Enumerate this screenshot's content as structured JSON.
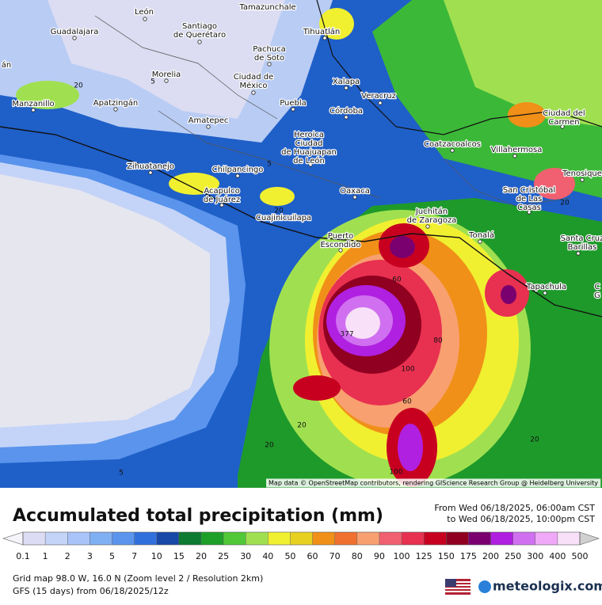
{
  "map": {
    "cities": [
      {
        "lines": [
          "León"
        ]
      },
      {
        "lines": [
          "Tamazunchale"
        ]
      },
      {
        "lines": [
          "Guadalajara"
        ]
      },
      {
        "lines": [
          "Santiago",
          "de Querétaro"
        ]
      },
      {
        "lines": [
          "Tihuatlán"
        ]
      },
      {
        "lines": [
          "Pachuca",
          "de Soto"
        ]
      },
      {
        "lines": [
          "Morelia"
        ]
      },
      {
        "lines": [
          "Ciudad de",
          "México"
        ]
      },
      {
        "lines": [
          "Manzanillo"
        ]
      },
      {
        "lines": [
          "Apatzingán"
        ]
      },
      {
        "lines": [
          "Puebla"
        ]
      },
      {
        "lines": [
          "Xalapa"
        ]
      },
      {
        "lines": [
          "Veracruz"
        ]
      },
      {
        "lines": [
          "Córdoba"
        ]
      },
      {
        "lines": [
          "Amatepec"
        ]
      },
      {
        "lines": [
          "Heroica",
          "Ciudad",
          "de Huajuapan",
          "de León"
        ]
      },
      {
        "lines": [
          "Ciudad del",
          "Carmen"
        ]
      },
      {
        "lines": [
          "Coatzacoalcos"
        ]
      },
      {
        "lines": [
          "Villahermosa"
        ]
      },
      {
        "lines": [
          "Zihuatanejo"
        ]
      },
      {
        "lines": [
          "Chilpancingo"
        ]
      },
      {
        "lines": [
          "Acapulco",
          "de Juárez"
        ]
      },
      {
        "lines": [
          "Oaxaca"
        ]
      },
      {
        "lines": [
          "San Cristóbal",
          "de Las",
          "Casas"
        ]
      },
      {
        "lines": [
          "Tenosique"
        ]
      },
      {
        "lines": [
          "Cuajinicuilapa"
        ]
      },
      {
        "lines": [
          "Juchitán",
          "de Zaragoza"
        ]
      },
      {
        "lines": [
          "Puerto",
          "Escondido"
        ]
      },
      {
        "lines": [
          "Tonalá"
        ]
      },
      {
        "lines": [
          "Santa Cruz",
          "Barillas"
        ]
      },
      {
        "lines": [
          "Tapachula"
        ]
      },
      {
        "lines": [
          "án"
        ]
      },
      {
        "lines": [
          "C",
          "G"
        ]
      }
    ],
    "contour_labels": [
      20,
      5,
      5,
      20,
      20,
      60,
      377,
      80,
      100,
      60,
      20,
      20,
      5,
      20,
      100
    ],
    "attribution": "Map data © OpenStreetMap contributors, rendering GIScience Research Group @ Heidelberg University"
  },
  "legend": {
    "title": "Accumulated total precipitation (mm)",
    "from": "From Wed 06/18/2025, 06:00am CST",
    "to": "to Wed 06/18/2025, 10:00pm CST",
    "labels": [
      0.1,
      1,
      2,
      3,
      5,
      7,
      10,
      15,
      20,
      25,
      30,
      40,
      50,
      60,
      70,
      80,
      90,
      100,
      125,
      150,
      175,
      200,
      250,
      300,
      400,
      500
    ],
    "colors": [
      "#f4f4fa",
      "#dcdcf4",
      "#c4d4f8",
      "#a8c4f8",
      "#80b0f4",
      "#5a94ec",
      "#3070dc",
      "#1848a8",
      "#0c7a30",
      "#1ea028",
      "#50c838",
      "#a0e050",
      "#f0f030",
      "#e8d020",
      "#f09018",
      "#f07030",
      "#f8a070",
      "#f06070",
      "#e83050",
      "#c80020",
      "#900020",
      "#7a0070",
      "#b020e0",
      "#d070f0",
      "#f0a8f8",
      "#f8e0f8",
      "#d0d0d0"
    ]
  },
  "footer": {
    "grid": "Grid map 98.0 W, 16.0 N (Zoom level 2 / Resolution 2km)",
    "model": "GFS (15 days) from  06/18/2025/12z",
    "logo": "meteologix.com"
  }
}
